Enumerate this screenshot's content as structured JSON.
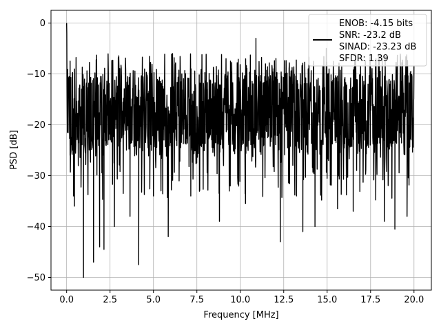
{
  "chart_data": {
    "type": "line",
    "title": "",
    "xlabel": "Frequency [MHz]",
    "ylabel": "PSD [dB]",
    "xlim": [
      -0.9,
      21.0
    ],
    "ylim": [
      -52.5,
      2.5
    ],
    "x_ticks": [
      0.0,
      2.5,
      5.0,
      7.5,
      10.0,
      12.5,
      15.0,
      17.5,
      20.0
    ],
    "x_tick_labels": [
      "0.0",
      "2.5",
      "5.0",
      "7.5",
      "10.0",
      "12.5",
      "15.0",
      "17.5",
      "20.0"
    ],
    "y_ticks": [
      0,
      -10,
      -20,
      -30,
      -40,
      -50
    ],
    "y_tick_labels": [
      "0",
      "−10",
      "−20",
      "−30",
      "−40",
      "−50"
    ],
    "grid": true,
    "legend_position": "top-right",
    "series": [
      {
        "name": "ENOB: -4.15 bits\nSNR: -23.2 dB\nSINAD: -23.23 dB\nSFDR: 1.39",
        "color": "#000000",
        "x_range": [
          0.0,
          20.0
        ],
        "noise_band_db": [
          -27.0,
          -8.0
        ],
        "peak_db": 0.0,
        "notable_points": [
          {
            "x": 0.0,
            "y": 0.0
          },
          {
            "x": 0.2,
            "y": -26.0
          },
          {
            "x": 0.4,
            "y": -34.0
          },
          {
            "x": 0.45,
            "y": -36.0
          },
          {
            "x": 0.97,
            "y": -50.0
          },
          {
            "x": 1.55,
            "y": -47.0
          },
          {
            "x": 1.9,
            "y": -44.0
          },
          {
            "x": 2.15,
            "y": -44.5
          },
          {
            "x": 2.75,
            "y": -40.0
          },
          {
            "x": 3.65,
            "y": -38.0
          },
          {
            "x": 4.15,
            "y": -47.5
          },
          {
            "x": 5.0,
            "y": -34.0
          },
          {
            "x": 5.85,
            "y": -42.0
          },
          {
            "x": 7.15,
            "y": -34.0
          },
          {
            "x": 8.8,
            "y": -39.0
          },
          {
            "x": 10.3,
            "y": -35.5
          },
          {
            "x": 12.3,
            "y": -43.0
          },
          {
            "x": 13.6,
            "y": -41.0
          },
          {
            "x": 14.3,
            "y": -40.0
          },
          {
            "x": 15.6,
            "y": -36.5
          },
          {
            "x": 16.5,
            "y": -37.0
          },
          {
            "x": 18.3,
            "y": -39.0
          },
          {
            "x": 18.9,
            "y": -40.5
          },
          {
            "x": 19.6,
            "y": -38.0
          },
          {
            "x": 10.9,
            "y": -3.0
          },
          {
            "x": 14.95,
            "y": -5.0
          },
          {
            "x": 6.1,
            "y": -6.0
          },
          {
            "x": 18.0,
            "y": -6.5
          }
        ]
      }
    ]
  }
}
